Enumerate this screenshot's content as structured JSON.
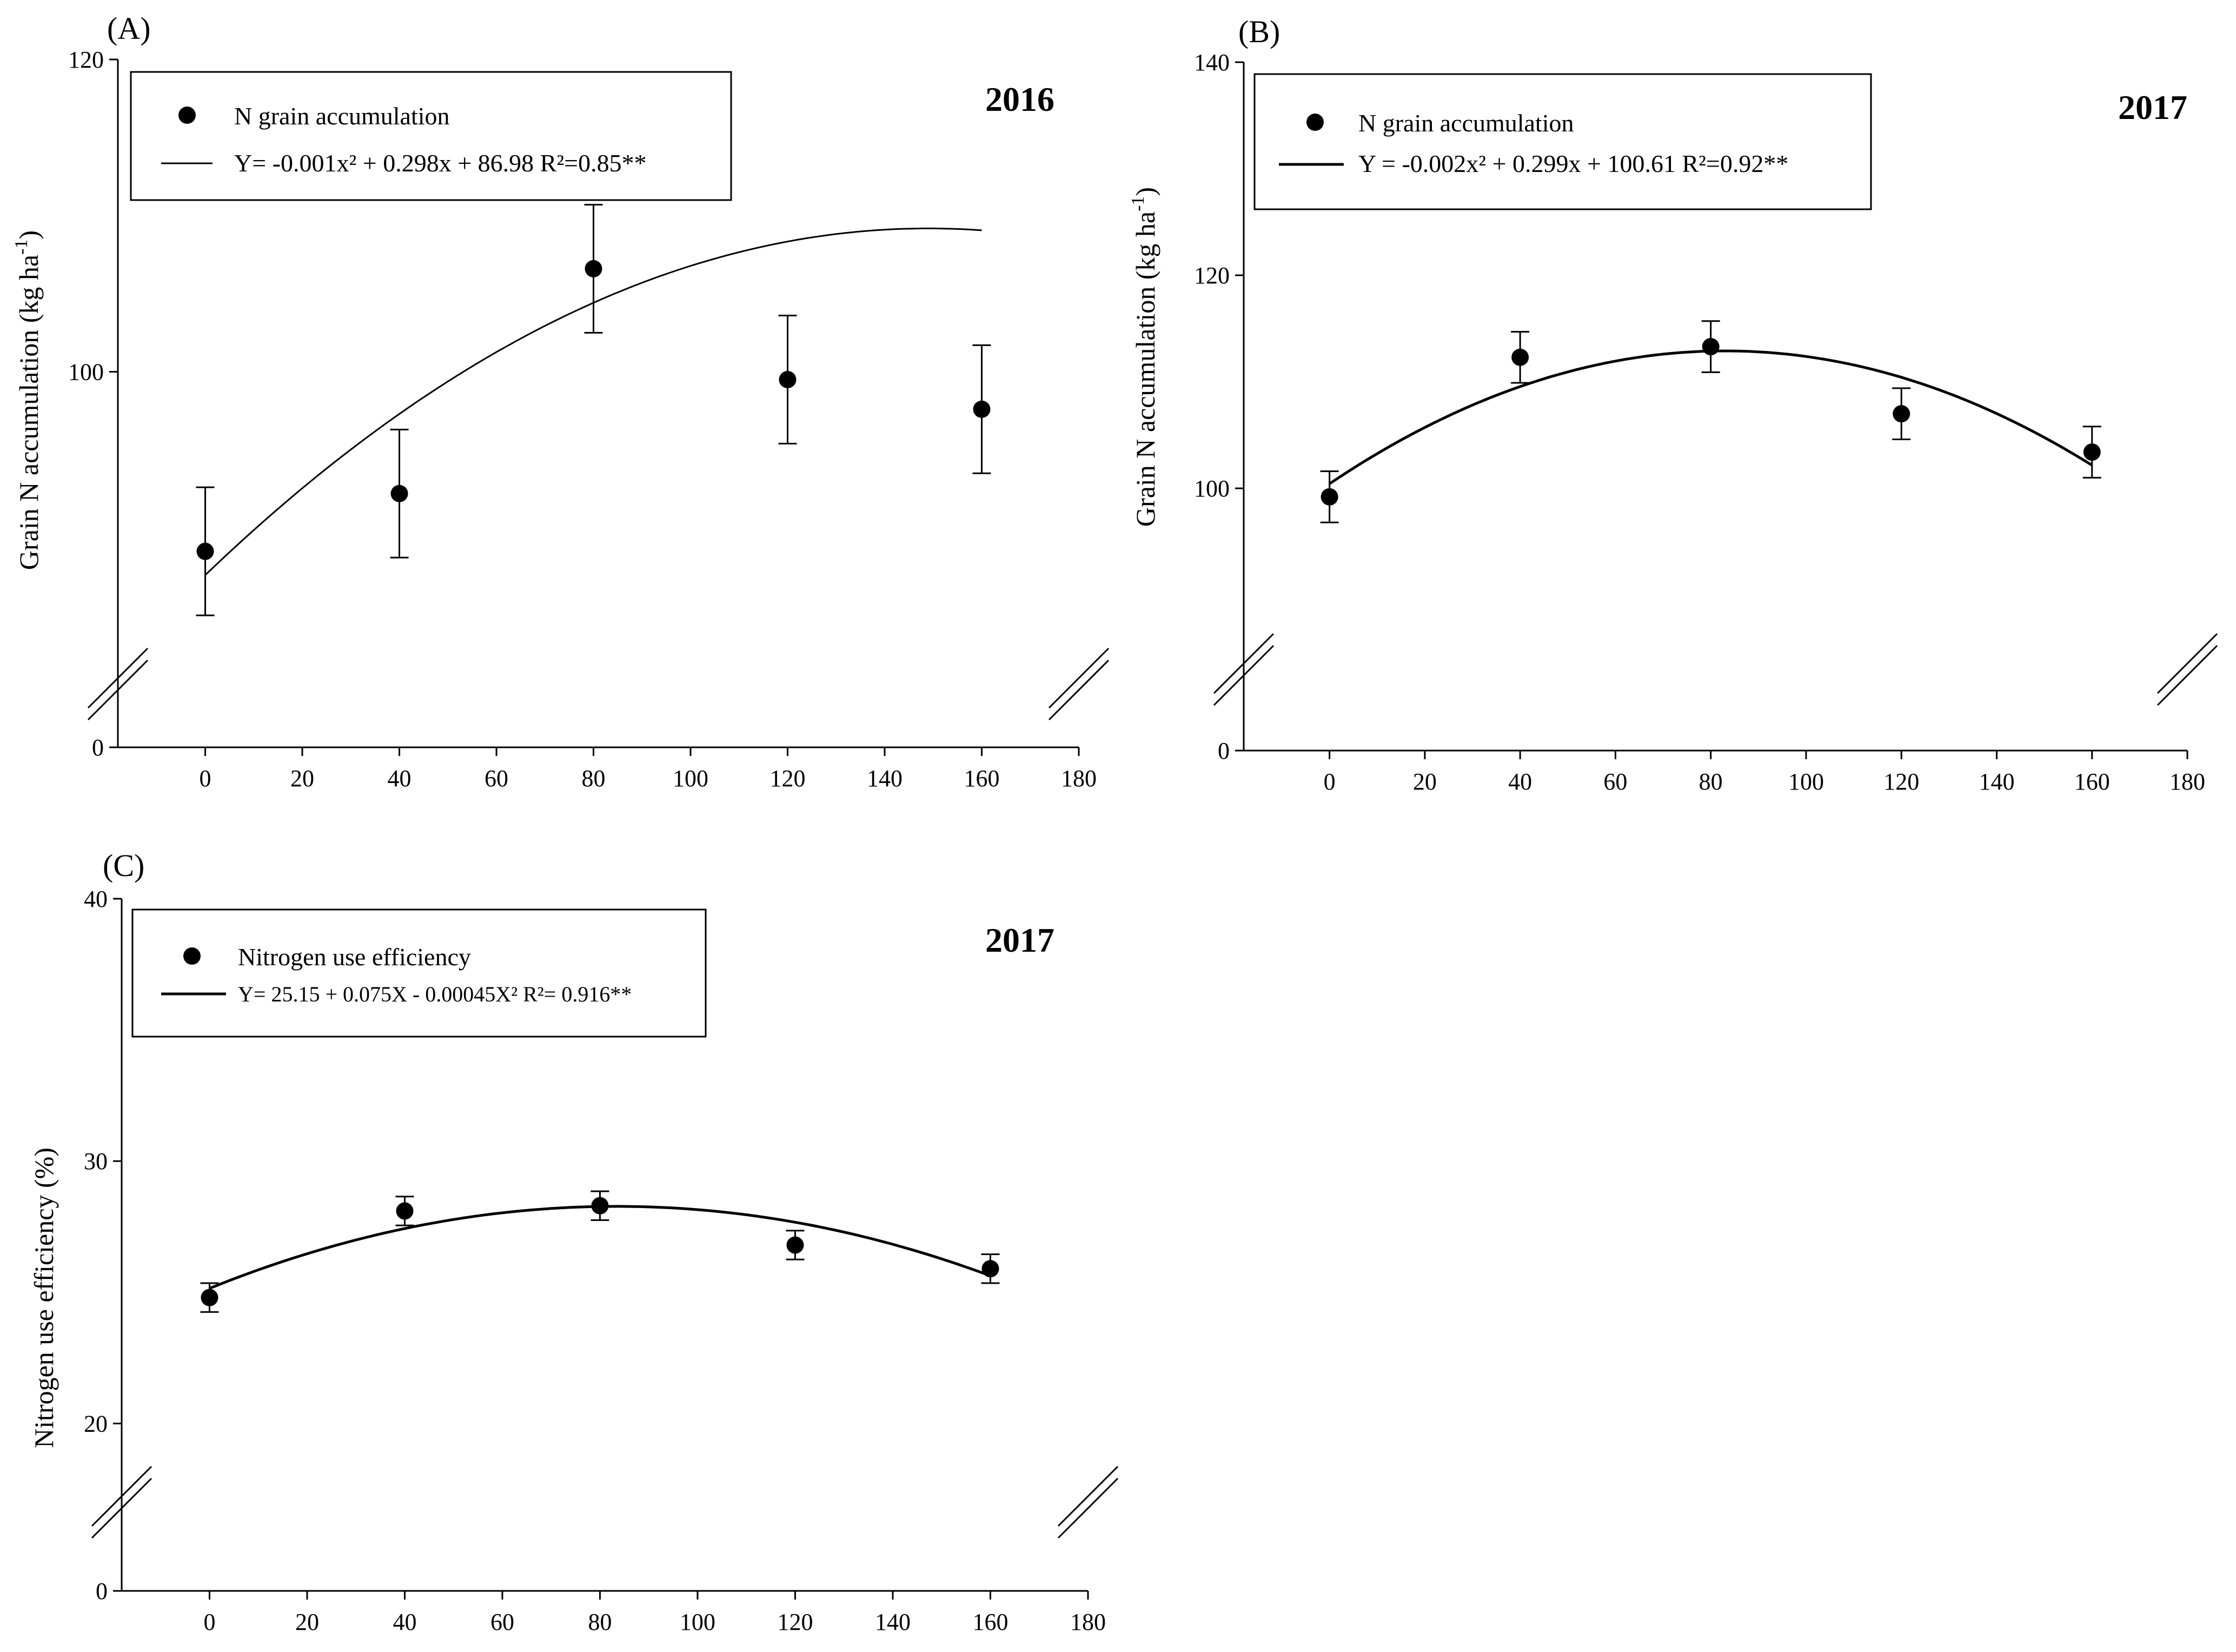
{
  "panels": [
    {
      "label": "(A)",
      "year": "2016",
      "legend": {
        "marker_label": "N grain accumulation",
        "line_label": "Y= -0.001x² + 0.298x + 86.98  R²=0.85**"
      }
    },
    {
      "label": "(B)",
      "year": "2017",
      "legend": {
        "marker_label": "N grain accumulation",
        "line_label": "Y = -0.002x² + 0.299x + 100.61 R²=0.92**"
      }
    },
    {
      "label": "(C)",
      "year": "2017",
      "legend": {
        "marker_label": "Nitrogen use efficiency",
        "line_label": "Y= 25.15 + 0.075X - 0.00045X² R²= 0.916**"
      }
    }
  ],
  "colors": {
    "ink": "#000000",
    "background": "#ffffff"
  },
  "chart_data": [
    {
      "type": "scatter",
      "title": "",
      "xlabel": "",
      "ylabel": "Grain N accumulation (kg ha-1)",
      "ylabel_main": "Grain N accumulation (kg ha",
      "ylabel_sup": "-1",
      "ylabel_end": ")",
      "xlim": [
        -18,
        180
      ],
      "xticks": [
        0,
        20,
        40,
        60,
        80,
        100,
        120,
        140,
        160,
        180
      ],
      "xtick_labels": [
        "0",
        "20",
        "40",
        "60",
        "80",
        "100",
        "120",
        "140",
        "160",
        "180"
      ],
      "ylim": [
        80,
        120
      ],
      "ybreak": true,
      "yticks": [
        100,
        120
      ],
      "ytick_labels": [
        "100",
        "120"
      ],
      "y_baseline_label": "0",
      "grid": false,
      "legend_position": "top-left",
      "series": [
        {
          "name": "N grain accumulation",
          "x": [
            0,
            40,
            80,
            120,
            160
          ],
          "y": [
            88.5,
            92.2,
            106.6,
            99.5,
            97.6
          ],
          "err": [
            4.1,
            4.1,
            4.1,
            4.1,
            4.1
          ]
        }
      ],
      "fit": {
        "a": -0.001,
        "b": 0.298,
        "c": 86.98,
        "x_range": [
          0,
          160
        ]
      }
    },
    {
      "type": "scatter",
      "title": "",
      "xlabel": "",
      "ylabel": "Grain N accumulation (kg ha-1)",
      "ylabel_main": "Grain N accumulation (kg ha",
      "ylabel_sup": "-1",
      "ylabel_end": ")",
      "xlim": [
        -18,
        180
      ],
      "xticks": [
        0,
        20,
        40,
        60,
        80,
        100,
        120,
        140,
        160,
        180
      ],
      "xtick_labels": [
        "0",
        "20",
        "40",
        "60",
        "80",
        "100",
        "120",
        "140",
        "160",
        "180"
      ],
      "ylim": [
        83,
        140
      ],
      "ybreak": true,
      "yticks": [
        100,
        120,
        140
      ],
      "ytick_labels": [
        "100",
        "120",
        "140"
      ],
      "y_baseline_label": "0",
      "grid": false,
      "legend_position": "top-left",
      "series": [
        {
          "name": "N grain accumulation",
          "x": [
            0,
            40,
            80,
            120,
            160
          ],
          "y": [
            99.2,
            112.3,
            113.3,
            107.0,
            103.4
          ],
          "err": [
            2.4,
            2.4,
            2.4,
            2.4,
            2.4
          ]
        }
      ],
      "fit": {
        "a": -0.002,
        "b": 0.299,
        "c": 100.61,
        "x_range": [
          0,
          160
        ],
        "note": "printed coefficients; drawn curve peaks near x=80"
      }
    },
    {
      "type": "scatter",
      "title": "",
      "xlabel": "",
      "ylabel": "Nitrogen use efficiency (%)",
      "ylabel_main": "Nitrogen use efficiency (%)",
      "ylabel_sup": "",
      "ylabel_end": "",
      "xlim": [
        -18,
        180
      ],
      "xticks": [
        0,
        20,
        40,
        60,
        80,
        100,
        120,
        140,
        160,
        180
      ],
      "xtick_labels": [
        "0",
        "20",
        "40",
        "60",
        "80",
        "100",
        "120",
        "140",
        "160",
        "180"
      ],
      "ylim": [
        17,
        40
      ],
      "ybreak": true,
      "yticks": [
        20,
        30,
        40
      ],
      "ytick_labels": [
        "20",
        "30",
        "40"
      ],
      "y_baseline_label": "0",
      "grid": false,
      "legend_position": "top-left",
      "series": [
        {
          "name": "Nitrogen use efficiency",
          "x": [
            0,
            40,
            80,
            120,
            160
          ],
          "y": [
            24.8,
            28.1,
            28.3,
            26.8,
            25.9
          ],
          "err": [
            0.55,
            0.55,
            0.55,
            0.55,
            0.55
          ]
        }
      ],
      "fit": {
        "a": -0.00045,
        "b": 0.075,
        "c": 25.15,
        "x_range": [
          0,
          160
        ]
      }
    }
  ]
}
